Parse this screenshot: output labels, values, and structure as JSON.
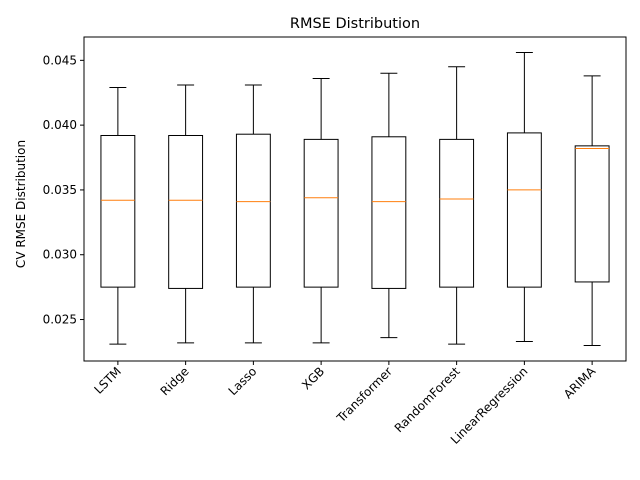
{
  "chart_data": {
    "type": "box",
    "title": "RMSE Distribution",
    "xlabel": "",
    "ylabel": "CV RMSE Distribution",
    "ylim": [
      0.0218,
      0.0468
    ],
    "yticks": [
      0.025,
      0.03,
      0.035,
      0.04,
      0.045
    ],
    "ytick_labels": [
      "0.025",
      "0.030",
      "0.035",
      "0.040",
      "0.045"
    ],
    "grid": false,
    "legend": "none",
    "box_color": "#000000",
    "median_color": "#ff7f0e",
    "categories": [
      "LSTM",
      "Ridge",
      "Lasso",
      "XGB",
      "Transformer",
      "RandomForest",
      "LinearRegression",
      "ARIMA"
    ],
    "boxes": [
      {
        "category": "LSTM",
        "whisker_low": 0.0231,
        "q1": 0.0275,
        "median": 0.0342,
        "q3": 0.0392,
        "whisker_high": 0.0429
      },
      {
        "category": "Ridge",
        "whisker_low": 0.0232,
        "q1": 0.0274,
        "median": 0.0342,
        "q3": 0.0392,
        "whisker_high": 0.0431
      },
      {
        "category": "Lasso",
        "whisker_low": 0.0232,
        "q1": 0.0275,
        "median": 0.0341,
        "q3": 0.0393,
        "whisker_high": 0.0431
      },
      {
        "category": "XGB",
        "whisker_low": 0.0232,
        "q1": 0.0275,
        "median": 0.0344,
        "q3": 0.0389,
        "whisker_high": 0.0436
      },
      {
        "category": "Transformer",
        "whisker_low": 0.0236,
        "q1": 0.0274,
        "median": 0.0341,
        "q3": 0.0391,
        "whisker_high": 0.044
      },
      {
        "category": "RandomForest",
        "whisker_low": 0.0231,
        "q1": 0.0275,
        "median": 0.0343,
        "q3": 0.0389,
        "whisker_high": 0.0445
      },
      {
        "category": "LinearRegression",
        "whisker_low": 0.0233,
        "q1": 0.0275,
        "median": 0.035,
        "q3": 0.0394,
        "whisker_high": 0.0456
      },
      {
        "category": "ARIMA",
        "whisker_low": 0.023,
        "q1": 0.0279,
        "median": 0.0382,
        "q3": 0.0384,
        "whisker_high": 0.0438
      }
    ]
  }
}
